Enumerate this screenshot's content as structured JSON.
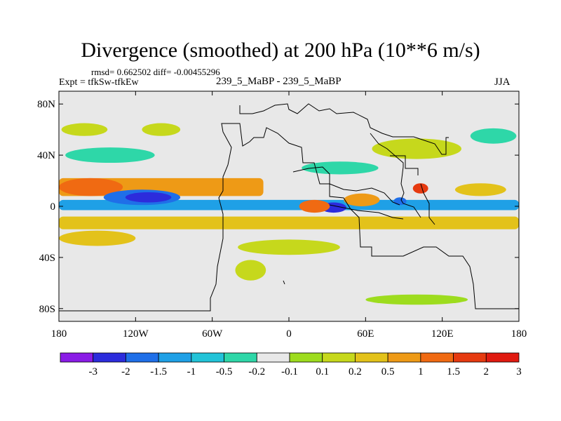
{
  "header": {
    "title": "Divergence (smoothed) at 200 hPa (10**6 m/s)",
    "stats": "rmsd= 0.662502 diff= -0.00455296",
    "expt": "Expt = tfkSw-tfkEw",
    "cases": "239_5_MaBP - 239_5_MaBP",
    "season": "JJA"
  },
  "chart_data": {
    "type": "contour-map",
    "title": "Divergence (smoothed) at 200 hPa (10**6 m/s)",
    "x_axis": {
      "range": [
        -180,
        180
      ],
      "ticks": [
        -180,
        -120,
        -60,
        0,
        60,
        120,
        180
      ],
      "tick_labels": [
        "180",
        "120W",
        "60W",
        "0",
        "60E",
        "120E",
        "180"
      ]
    },
    "y_axis": {
      "range": [
        -90,
        90
      ],
      "ticks": [
        80,
        40,
        0,
        -40,
        -80
      ],
      "tick_labels": [
        "80N",
        "40N",
        "0",
        "40S",
        "80S"
      ]
    },
    "colorbar": {
      "levels": [
        "-3",
        "-2",
        "-1.5",
        "-1",
        "-0.5",
        "-0.2",
        "-0.1",
        "0.1",
        "0.2",
        "0.5",
        "1",
        "1.5",
        "2",
        "3"
      ],
      "colors": [
        "#8a1ce6",
        "#2c2cdc",
        "#1f6fe8",
        "#1fa0e6",
        "#22c3d8",
        "#2ed7a8",
        "#e8e8e8",
        "#9ddc1e",
        "#c6d81c",
        "#e3c21a",
        "#ee9a16",
        "#f06a12",
        "#e63a10",
        "#e01a10"
      ]
    },
    "features": [
      {
        "kind": "band",
        "lon": [
          -180,
          180
        ],
        "lat": [
          -3,
          5
        ],
        "level": "-1"
      },
      {
        "kind": "band",
        "lon": [
          -180,
          180
        ],
        "lat": [
          -18,
          -8
        ],
        "level": "0.5"
      },
      {
        "kind": "band",
        "lon": [
          -180,
          -20
        ],
        "lat": [
          8,
          22
        ],
        "level": "1"
      },
      {
        "kind": "blob",
        "lon": -155,
        "lat": 15,
        "rx": 25,
        "ry": 7,
        "level": "1.5"
      },
      {
        "kind": "blob",
        "lon": -115,
        "lat": 7,
        "rx": 30,
        "ry": 6,
        "level": "-1.5"
      },
      {
        "kind": "blob",
        "lon": -110,
        "lat": 7,
        "rx": 18,
        "ry": 4,
        "level": "-2"
      },
      {
        "kind": "blob",
        "lon": 35,
        "lat": -1,
        "rx": 10,
        "ry": 4,
        "level": "-2"
      },
      {
        "kind": "blob",
        "lon": 20,
        "lat": 0,
        "rx": 12,
        "ry": 5,
        "level": "1.5"
      },
      {
        "kind": "blob",
        "lon": 57,
        "lat": 5,
        "rx": 14,
        "ry": 5,
        "level": "1"
      },
      {
        "kind": "blob",
        "lon": 103,
        "lat": 14,
        "rx": 6,
        "ry": 4,
        "level": "2"
      },
      {
        "kind": "blob",
        "lon": 87,
        "lat": 4,
        "rx": 5,
        "ry": 3,
        "level": "-1.5"
      },
      {
        "kind": "blob",
        "lon": 150,
        "lat": 13,
        "rx": 20,
        "ry": 5,
        "level": "0.5"
      },
      {
        "kind": "blob",
        "lon": -150,
        "lat": -25,
        "rx": 30,
        "ry": 6,
        "level": "0.5"
      },
      {
        "kind": "blob",
        "lon": -140,
        "lat": 40,
        "rx": 35,
        "ry": 6,
        "level": "-0.2"
      },
      {
        "kind": "blob",
        "lon": 40,
        "lat": 30,
        "rx": 30,
        "ry": 5,
        "level": "-0.2"
      },
      {
        "kind": "blob",
        "lon": 100,
        "lat": 45,
        "rx": 35,
        "ry": 8,
        "level": "0.2"
      },
      {
        "kind": "blob",
        "lon": 0,
        "lat": -32,
        "rx": 40,
        "ry": 6,
        "level": "0.2"
      },
      {
        "kind": "blob",
        "lon": -30,
        "lat": -50,
        "rx": 12,
        "ry": 8,
        "level": "0.2"
      },
      {
        "kind": "blob",
        "lon": 100,
        "lat": -73,
        "rx": 40,
        "ry": 4,
        "level": "0.1"
      },
      {
        "kind": "blob",
        "lon": -160,
        "lat": 60,
        "rx": 18,
        "ry": 5,
        "level": "0.2"
      },
      {
        "kind": "blob",
        "lon": -100,
        "lat": 60,
        "rx": 15,
        "ry": 5,
        "level": "0.2"
      },
      {
        "kind": "blob",
        "lon": 160,
        "lat": 55,
        "rx": 18,
        "ry": 6,
        "level": "-0.2"
      }
    ]
  }
}
